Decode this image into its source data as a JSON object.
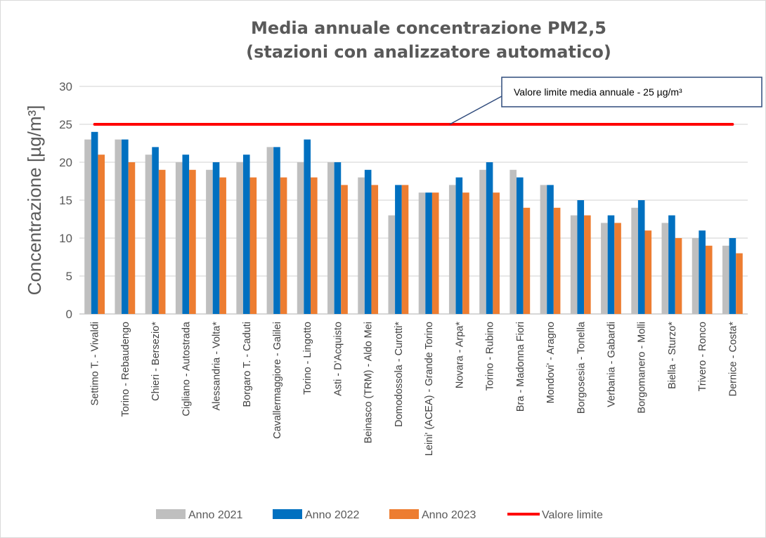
{
  "chart_data": {
    "type": "bar",
    "title": "Media annuale concentrazione PM2,5",
    "subtitle": "(stazioni con analizzatore automatico)",
    "ylabel": "Concentrazione [µg/m³]",
    "xlabel": "",
    "ylim": [
      0,
      30
    ],
    "yticks": [
      0,
      5,
      10,
      15,
      20,
      25,
      30
    ],
    "grid": true,
    "legend_position": "bottom",
    "categories": [
      "Settimo T. - Vivaldi",
      "Torino - Rebaudengo",
      "Chieri - Bersezio*",
      "Cigliano - Autostrada",
      "Alessandria - Volta*",
      "Borgaro T. - Caduti",
      "Cavallermaggiore - Galilei",
      "Torino - Lingotto",
      "Asti - D'Acquisto",
      "Beinasco (TRM) - Aldo Mei",
      "Domodossola - Curotti*",
      "Leini' (ACEA) - Grande Torino",
      "Novara - Arpa*",
      "Torino - Rubino",
      "Bra - Madonna Fiori",
      "Mondovi' - Aragno",
      "Borgosesia - Tonella",
      "Verbania - Gabardi",
      "Borgomanero - Molli",
      "Biella - Sturzo*",
      "Trivero - Ronco",
      "Dernice - Costa*"
    ],
    "series": [
      {
        "name": "Anno 2021",
        "color": "#bfbfbf",
        "values": [
          23,
          23,
          21,
          20,
          19,
          20,
          22,
          20,
          20,
          18,
          13,
          16,
          17,
          19,
          19,
          17,
          13,
          12,
          14,
          12,
          10,
          9
        ]
      },
      {
        "name": "Anno 2022",
        "color": "#0070c0",
        "values": [
          24,
          23,
          22,
          21,
          20,
          21,
          22,
          23,
          20,
          19,
          17,
          16,
          18,
          20,
          18,
          17,
          15,
          13,
          15,
          13,
          11,
          10
        ]
      },
      {
        "name": "Anno 2023",
        "color": "#ed7d31",
        "values": [
          21,
          20,
          19,
          19,
          18,
          18,
          18,
          18,
          17,
          17,
          17,
          16,
          16,
          16,
          14,
          14,
          13,
          12,
          11,
          10,
          9,
          8
        ]
      }
    ],
    "reference_line": {
      "name": "Valore limite",
      "value": 25,
      "color": "#ff0000"
    },
    "annotation": "Valore limite media annuale  - 25 µg/m³"
  }
}
